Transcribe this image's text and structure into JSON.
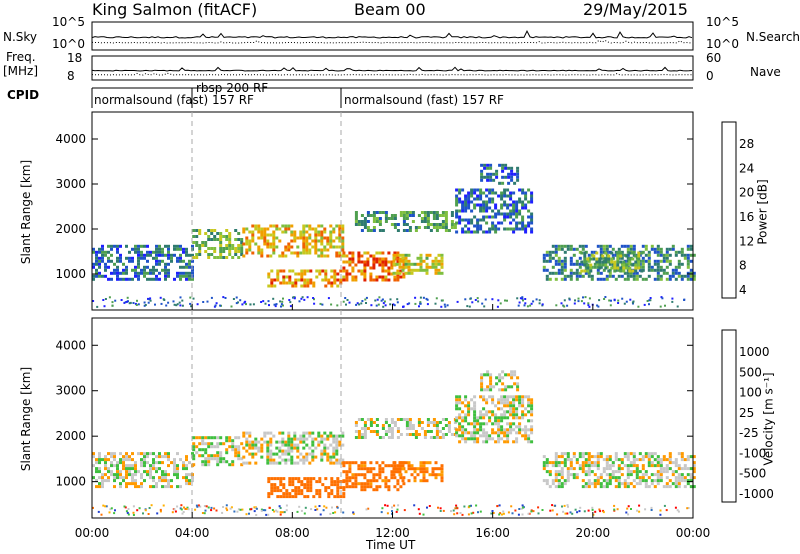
{
  "header": {
    "station": "King Salmon (fitACF)",
    "beam": "Beam 00",
    "date": "29/May/2015"
  },
  "strips": {
    "nsky_label": "N.Sky",
    "nsearch_label": "N.Search",
    "nsky_ticks": [
      "10^5",
      "10^0"
    ],
    "nsky_right_ticks": [
      "10^5",
      "10^0"
    ],
    "freq_label_1": "Freq.",
    "freq_label_2": "[MHz]",
    "freq_ticks": [
      "18",
      "8"
    ],
    "nave_label": "Nave",
    "nave_ticks": [
      "60",
      "0"
    ],
    "cpid_label": "CPID",
    "cpid_segments": [
      "normalsound (fast) 157 RF",
      "rbsp 200 RF",
      "normalsound (fast) 157 RF"
    ]
  },
  "chart_data": [
    {
      "type": "heatmap",
      "name": "power",
      "ylabel": "Slant Range [km]",
      "xlabel": "",
      "ylim": [
        200,
        4600
      ],
      "yticks": [
        "4000",
        "3000",
        "2000",
        "1000"
      ],
      "xlim": [
        0,
        24
      ],
      "colorbar_label": "Power [dB]",
      "colorbar_ticks": [
        "28",
        "24",
        "20",
        "16",
        "12",
        "8",
        "4"
      ],
      "colors": [
        "#1f1fff",
        "#1f53c8",
        "#2f7b6f",
        "#4f9f4f",
        "#7fbf3f",
        "#c8c81f",
        "#f0a000",
        "#f06000",
        "#e02000",
        "#ff0000"
      ],
      "bands": [
        {
          "t": [
            0.0,
            4.0
          ],
          "lo": 900,
          "hi": 1650,
          "v": 6
        },
        {
          "t": [
            4.0,
            6.0
          ],
          "lo": 1350,
          "hi": 2000,
          "v": 12
        },
        {
          "t": [
            6.0,
            10.0
          ],
          "lo": 1400,
          "hi": 2100,
          "v": 18
        },
        {
          "t": [
            7.0,
            10.0
          ],
          "lo": 700,
          "hi": 1100,
          "v": 20
        },
        {
          "t": [
            10.0,
            12.5
          ],
          "lo": 850,
          "hi": 1500,
          "v": 22
        },
        {
          "t": [
            12.0,
            14.0
          ],
          "lo": 1000,
          "hi": 1450,
          "v": 16
        },
        {
          "t": [
            10.5,
            14.5
          ],
          "lo": 1950,
          "hi": 2400,
          "v": 10
        },
        {
          "t": [
            14.5,
            17.5
          ],
          "lo": 1900,
          "hi": 2900,
          "v": 6
        },
        {
          "t": [
            15.5,
            17.0
          ],
          "lo": 3000,
          "hi": 3450,
          "v": 5
        },
        {
          "t": [
            18.0,
            24.0
          ],
          "lo": 900,
          "hi": 1650,
          "v": 8
        },
        {
          "t": [
            19.5,
            22.0
          ],
          "lo": 1050,
          "hi": 1500,
          "v": 12
        }
      ]
    },
    {
      "type": "heatmap",
      "name": "velocity",
      "ylabel": "Slant Range [km]",
      "xlabel": "Time UT",
      "ylim": [
        200,
        4600
      ],
      "yticks": [
        "4000",
        "3000",
        "2000",
        "1000"
      ],
      "xlim": [
        0,
        24
      ],
      "xticks": [
        "00:00",
        "04:00",
        "08:00",
        "12:00",
        "16:00",
        "20:00",
        "00:00"
      ],
      "colorbar_label": "Velocity [m s⁻¹]",
      "colorbar_ticks": [
        "1000",
        "500",
        "100",
        "25",
        "-25",
        "-100",
        "-500",
        "-1000"
      ],
      "colors": [
        "#ff0000",
        "#ff3000",
        "#ff7000",
        "#ff9a00",
        "#ffb000",
        "#c8c8c8",
        "#c8c8c8",
        "#3fbf3f",
        "#3f9f6f",
        "#2f6fbf",
        "#1f3fd0"
      ],
      "bands": [
        {
          "t": [
            0.0,
            4.0
          ],
          "lo": 900,
          "hi": 1650,
          "v": 0
        },
        {
          "t": [
            4.0,
            6.0
          ],
          "lo": 1350,
          "hi": 2000,
          "v": 0
        },
        {
          "t": [
            6.0,
            10.0
          ],
          "lo": 1400,
          "hi": 2100,
          "v": 0
        },
        {
          "t": [
            7.0,
            10.0
          ],
          "lo": 650,
          "hi": 1100,
          "v": -200
        },
        {
          "t": [
            10.0,
            12.5
          ],
          "lo": 850,
          "hi": 1450,
          "v": -150
        },
        {
          "t": [
            12.0,
            14.0
          ],
          "lo": 1000,
          "hi": 1450,
          "v": -120
        },
        {
          "t": [
            10.5,
            14.5
          ],
          "lo": 1950,
          "hi": 2400,
          "v": 0
        },
        {
          "t": [
            14.5,
            17.5
          ],
          "lo": 1900,
          "hi": 2900,
          "v": 0
        },
        {
          "t": [
            15.5,
            17.0
          ],
          "lo": 3000,
          "hi": 3450,
          "v": 0
        },
        {
          "t": [
            18.0,
            24.0
          ],
          "lo": 900,
          "hi": 1650,
          "v": 0
        }
      ]
    }
  ]
}
